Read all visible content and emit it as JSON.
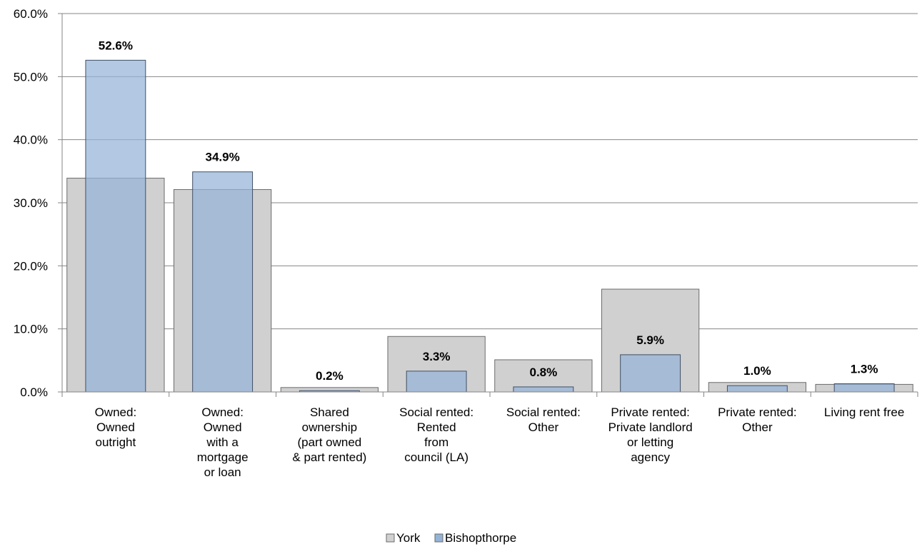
{
  "chart_data": {
    "type": "bar",
    "title": "",
    "xlabel": "",
    "ylabel": "",
    "ylim": [
      0,
      60
    ],
    "y_tick_step": 10,
    "y_tick_format": "percent_1dp",
    "grid": true,
    "legend_position": "bottom",
    "bar_layout": "overlapped",
    "categories": [
      [
        "Owned:",
        "Owned",
        "outright"
      ],
      [
        "Owned:",
        "Owned",
        "with a",
        "mortgage",
        "or loan"
      ],
      [
        "Shared",
        "ownership",
        "(part owned",
        "& part rented)"
      ],
      [
        "Social rented:",
        "Rented",
        "from",
        "council (LA)"
      ],
      [
        "Social rented:",
        "Other"
      ],
      [
        "Private rented:",
        "Private landlord",
        "or letting",
        "agency"
      ],
      [
        "Private rented:",
        "Other"
      ],
      [
        "Living rent free"
      ]
    ],
    "series": [
      {
        "name": "York",
        "color": "#d0d0d0",
        "values": [
          33.9,
          32.1,
          0.7,
          8.8,
          5.1,
          16.3,
          1.5,
          1.2
        ],
        "show_labels": false
      },
      {
        "name": "Bishopthorpe",
        "color": "#95b3d7",
        "values": [
          52.6,
          34.9,
          0.2,
          3.3,
          0.8,
          5.9,
          1.0,
          1.3
        ],
        "labels": [
          "52.6%",
          "34.9%",
          "0.2%",
          "3.3%",
          "0.8%",
          "5.9%",
          "1.0%",
          "1.3%"
        ],
        "show_labels": true
      }
    ],
    "y_tick_labels": [
      "0.0%",
      "10.0%",
      "20.0%",
      "30.0%",
      "40.0%",
      "50.0%",
      "60.0%"
    ]
  }
}
